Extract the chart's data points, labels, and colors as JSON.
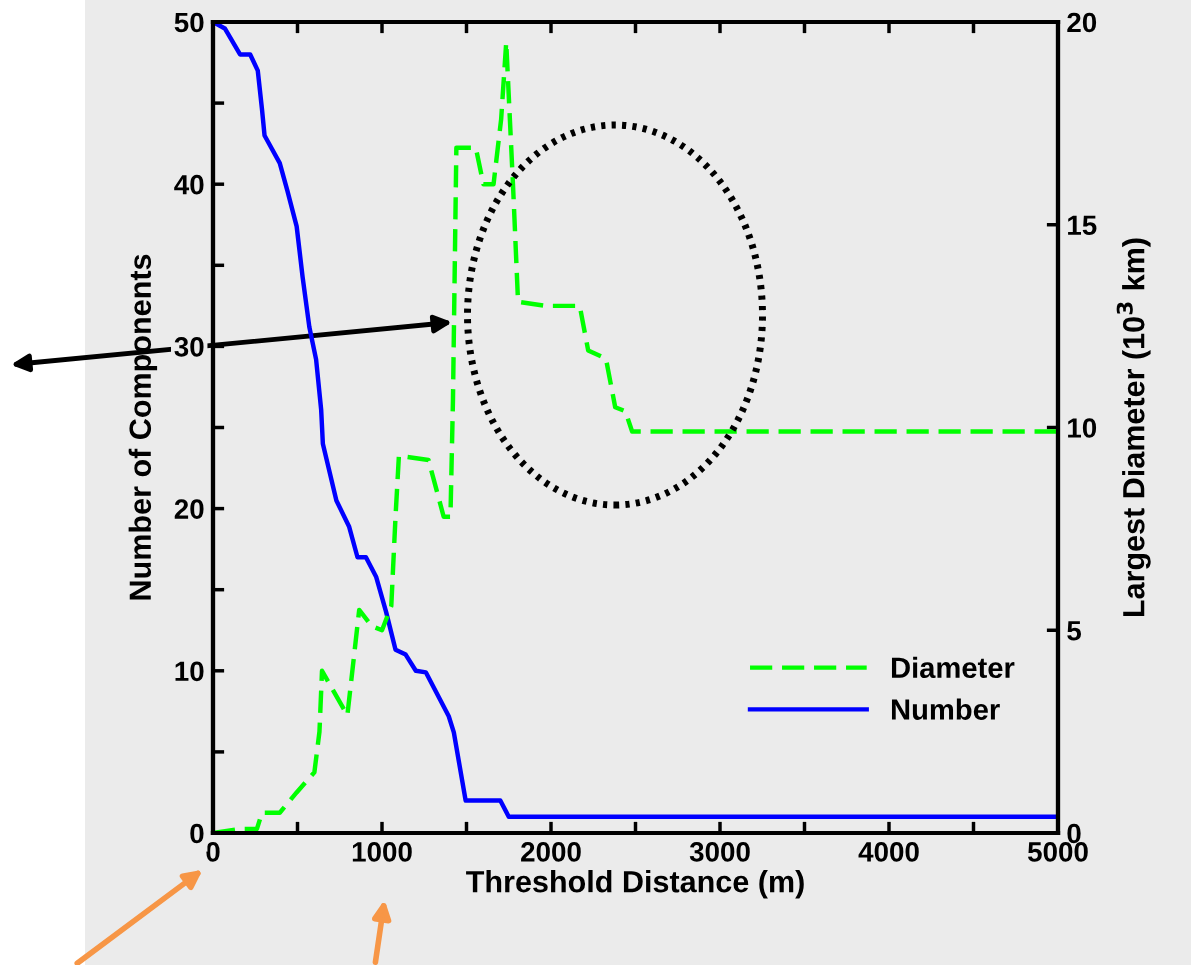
{
  "chart_data": {
    "type": "line",
    "xlabel": "Threshold Distance (m)",
    "ylabel": "Number of Components",
    "y2label": "Largest Diameter (10$^{3}$ km)",
    "xlim": [
      0,
      5000
    ],
    "xticks": [
      0,
      {
        "value": 500,
        "label": null
      },
      1000,
      {
        "value": 1500,
        "label": null
      },
      2000,
      {
        "value": 2500,
        "label": null
      },
      3000,
      {
        "value": 3500,
        "label": null
      },
      4000,
      {
        "value": 4500,
        "label": null
      },
      5000
    ],
    "ylim": [
      0,
      50
    ],
    "yticks": [
      0,
      {
        "value": 5,
        "label": null
      },
      10,
      {
        "value": 15,
        "label": null
      },
      20,
      {
        "value": 25,
        "label": null
      },
      30,
      {
        "value": 35,
        "label": null
      },
      40,
      {
        "value": 45,
        "label": null
      },
      50
    ],
    "y2lim": [
      0,
      20
    ],
    "y2ticks": [
      0,
      5,
      10,
      15,
      20
    ],
    "grid": false,
    "legend": "bottom right",
    "marker": "none",
    "series": [
      {
        "name": "Diameter",
        "color": "#00ff00",
        "axis": "y2",
        "line_style": "dashed",
        "x": [
          0,
          160,
          260,
          290,
          395,
          495,
          600,
          630,
          645,
          795,
          865,
          940,
          1000,
          1055,
          1080,
          1100,
          1275,
          1365,
          1405,
          1420,
          1440,
          1555,
          1600,
          1660,
          1705,
          1735,
          1775,
          1805,
          1965,
          2170,
          2220,
          2325,
          2380,
          2440,
          2480,
          5000
        ],
        "values": [
          0,
          0.1,
          0.1,
          0.5,
          0.5,
          1,
          1.5,
          2.5,
          4,
          2.9,
          5.5,
          5.1,
          5,
          5.6,
          7.8,
          9.3,
          9.2,
          7.8,
          7.8,
          10.7,
          16.9,
          16.9,
          16,
          16,
          17.6,
          19.5,
          16,
          13.1,
          13,
          13,
          11.9,
          11.7,
          10.5,
          10.4,
          9.9,
          9.9
        ]
      },
      {
        "name": "Number",
        "color": "#0000ff",
        "axis": "y",
        "line_style": "solid",
        "x": [
          0,
          70,
          160,
          220,
          265,
          290,
          305,
          395,
          440,
          495,
          530,
          570,
          610,
          640,
          650,
          730,
          805,
          855,
          905,
          965,
          1025,
          1080,
          1140,
          1200,
          1260,
          1395,
          1425,
          1495,
          1700,
          1750,
          5000
        ],
        "values": [
          50,
          49.6,
          48,
          48,
          47,
          44.6,
          43,
          41.3,
          39.6,
          37.4,
          34.3,
          31.2,
          29.2,
          26.1,
          24,
          20.5,
          18.9,
          17,
          17,
          15.8,
          13.6,
          11.3,
          11,
          10,
          9.9,
          7.2,
          6.2,
          2,
          2,
          1,
          1
        ]
      }
    ]
  }
}
